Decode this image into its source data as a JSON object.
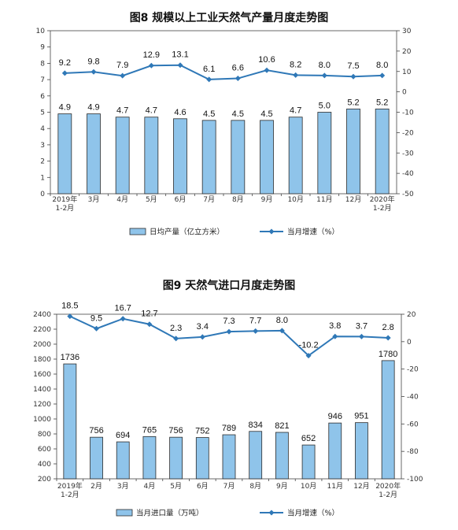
{
  "chart_data": [
    {
      "type": "bar",
      "title": "图8  规模以上工业天然气产量月度走势图",
      "categories": [
        "2019年\n1-2月",
        "3月",
        "4月",
        "5月",
        "6月",
        "7月",
        "8月",
        "9月",
        "10月",
        "11月",
        "12月",
        "2020年\n1-2月"
      ],
      "series": [
        {
          "name": "日均产量（亿立方米）",
          "type": "bar",
          "axis": "left",
          "values": [
            4.9,
            4.9,
            4.7,
            4.7,
            4.6,
            4.5,
            4.5,
            4.5,
            4.7,
            5.0,
            5.2,
            5.2
          ],
          "labels": [
            "4.9",
            "4.9",
            "4.7",
            "4.7",
            "4.6",
            "4.5",
            "4.5",
            "4.5",
            "4.7",
            "5.0",
            "5.2",
            "5.2"
          ]
        },
        {
          "name": "当月增速（%）",
          "type": "line",
          "axis": "right",
          "values": [
            9.2,
            9.8,
            7.9,
            12.9,
            13.1,
            6.1,
            6.6,
            10.6,
            8.2,
            8.0,
            7.5,
            8.0
          ],
          "labels": [
            "9.2",
            "9.8",
            "7.9",
            "12.9",
            "13.1",
            "6.1",
            "6.6",
            "10.6",
            "8.2",
            "8.0",
            "7.5",
            "8.0"
          ]
        }
      ],
      "ylim": [
        0,
        10
      ],
      "y_ticks": [
        "0",
        "1",
        "2",
        "3",
        "4",
        "5",
        "6",
        "7",
        "8",
        "9",
        "10"
      ],
      "y2lim": [
        -50,
        30
      ],
      "y2_ticks": [
        "-50",
        "-40",
        "-30",
        "-20",
        "-10",
        "0",
        "10",
        "20",
        "30"
      ],
      "legend_position": "bottom",
      "grid": false,
      "colors": {
        "bar_fill": "#8fc4ea",
        "bar_stroke": "#2c2c2c",
        "line": "#2f78b7"
      }
    },
    {
      "type": "bar",
      "title": "图9  天然气进口月度走势图",
      "categories": [
        "2019年\n1-2月",
        "2月",
        "3月",
        "4月",
        "5月",
        "6月",
        "7月",
        "8月",
        "9月",
        "10月",
        "11月",
        "12月",
        "2020年\n1-2月"
      ],
      "series": [
        {
          "name": "当月进口量（万吨）",
          "type": "bar",
          "axis": "left",
          "values": [
            1736,
            756,
            694,
            765,
            756,
            752,
            789,
            834,
            821,
            652,
            946,
            951,
            1780
          ],
          "labels": [
            "1736",
            "756",
            "694",
            "765",
            "756",
            "752",
            "789",
            "834",
            "821",
            "652",
            "946",
            "951",
            "1780"
          ]
        },
        {
          "name": "当月增速（%）",
          "type": "line",
          "axis": "right",
          "values": [
            18.5,
            9.5,
            16.7,
            12.7,
            2.3,
            3.4,
            7.3,
            7.7,
            8.0,
            -10.2,
            3.8,
            3.7,
            2.8
          ],
          "labels": [
            "18.5",
            "9.5",
            "16.7",
            "12.7",
            "2.3",
            "3.4",
            "7.3",
            "7.7",
            "8.0",
            "-10.2",
            "3.8",
            "3.7",
            "2.8"
          ]
        }
      ],
      "ylim": [
        200,
        2400
      ],
      "y_ticks": [
        "200",
        "400",
        "600",
        "800",
        "1000",
        "1200",
        "1400",
        "1600",
        "1800",
        "2000",
        "2200",
        "2400"
      ],
      "y2lim": [
        -100,
        20
      ],
      "y2_ticks": [
        "-100",
        "-80",
        "-60",
        "-40",
        "-20",
        "0",
        "20"
      ],
      "legend_position": "bottom",
      "grid": false,
      "colors": {
        "bar_fill": "#8fc4ea",
        "bar_stroke": "#2c2c2c",
        "line": "#2f78b7"
      }
    }
  ]
}
